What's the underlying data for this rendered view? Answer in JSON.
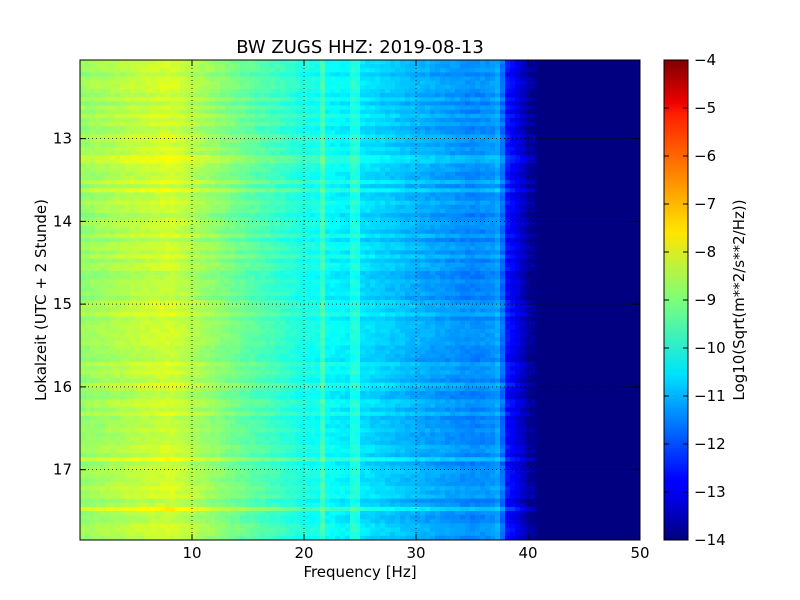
{
  "chart_data": {
    "type": "heatmap",
    "title": "BW ZUGS HHZ: 2019-08-13",
    "xlabel": "Frequency [Hz]",
    "ylabel": "Lokalzeit (UTC + 2 Stunde)",
    "xlim": [
      0,
      50
    ],
    "ylim": [
      12.05,
      17.85
    ],
    "y_inverted": true,
    "x_ticks": [
      10,
      20,
      30,
      40,
      50
    ],
    "y_ticks": [
      13,
      14,
      15,
      16,
      17
    ],
    "grid": true,
    "colormap": "jet",
    "colorbar": {
      "label": "Log10(Sqrt(m**2/s**2/Hz))",
      "range": [
        -14,
        -4
      ],
      "ticks": [
        -4,
        -5,
        -6,
        -7,
        -8,
        -9,
        -10,
        -11,
        -12,
        -13,
        -14
      ]
    },
    "spectral_profile": {
      "frequency_hz": [
        0,
        5,
        8,
        10,
        15,
        20,
        22,
        25,
        30,
        35,
        37,
        38,
        39,
        40,
        41,
        45,
        50
      ],
      "log_amplitude": [
        -8.8,
        -8.4,
        -8.2,
        -8.5,
        -9.3,
        -10.0,
        -10.2,
        -10.5,
        -11.0,
        -11.4,
        -11.3,
        -12.5,
        -13.0,
        -13.6,
        -14.0,
        -14.0,
        -14.0
      ]
    },
    "spectral_lines_hz": [
      21.6,
      24.5,
      37.2,
      37.6
    ]
  }
}
